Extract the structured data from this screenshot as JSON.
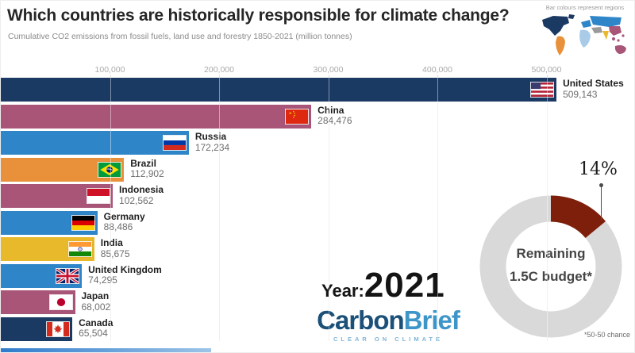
{
  "header": {
    "title": "Which countries are historically responsible for climate change?",
    "subtitle": "Cumulative CO2 emissions from fossil fuels, land use and forestry 1850-2021 (million tonnes)"
  },
  "map": {
    "caption": "Bar colours represent regions",
    "regions": [
      {
        "region": "North America",
        "color": "#1b3a63"
      },
      {
        "region": "South America",
        "color": "#e8913a"
      },
      {
        "region": "Europe & Russia",
        "color": "#2e86c8"
      },
      {
        "region": "Africa",
        "color": "#a9cbe8"
      },
      {
        "region": "Middle East",
        "color": "#9a9a9a"
      },
      {
        "region": "South Asia",
        "color": "#e9b92c"
      },
      {
        "region": "East Asia & Oceania",
        "color": "#a85578"
      }
    ]
  },
  "chart_data": [
    {
      "type": "bar",
      "orientation": "horizontal",
      "title": "Cumulative CO2 emissions 1850-2021 (million tonnes)",
      "categories": [
        "United States",
        "China",
        "Russia",
        "Brazil",
        "Indonesia",
        "Germany",
        "India",
        "United Kingdom",
        "Japan",
        "Canada"
      ],
      "values": [
        509143,
        284476,
        172234,
        112902,
        102562,
        88486,
        85675,
        74295,
        68002,
        65504
      ],
      "value_labels": [
        "509,143",
        "284,476",
        "172,234",
        "112,902",
        "102,562",
        "88,486",
        "85,675",
        "74,295",
        "68,002",
        "65,504"
      ],
      "bar_colors": [
        "#1b3a63",
        "#a85578",
        "#2e86c8",
        "#e8913a",
        "#a85578",
        "#2e86c8",
        "#e9b92c",
        "#2e86c8",
        "#a85578",
        "#1b3a63"
      ],
      "flags": [
        "us",
        "cn",
        "ru",
        "br",
        "id",
        "de",
        "in",
        "gb",
        "jp",
        "ca"
      ],
      "x_ticks": [
        "100,000",
        "200,000",
        "300,000",
        "400,000",
        "500,000"
      ],
      "x_tick_values": [
        100000,
        200000,
        300000,
        400000,
        500000
      ],
      "xlim": [
        0,
        520000
      ],
      "grid": true
    },
    {
      "type": "pie",
      "subtype": "donut",
      "percent": 14,
      "percent_label": "14%",
      "center_line1": "Remaining",
      "center_line2": "1.5C budget*",
      "footnote": "*50-50 chance",
      "ring_color": "#d9d9d9",
      "segment_color": "#7e1f0b"
    }
  ],
  "year": {
    "label": "Year:",
    "value": "2021"
  },
  "logo": {
    "part1": "Carbon",
    "part2": "Brief",
    "tagline": "CLEAR ON CLIMATE"
  }
}
